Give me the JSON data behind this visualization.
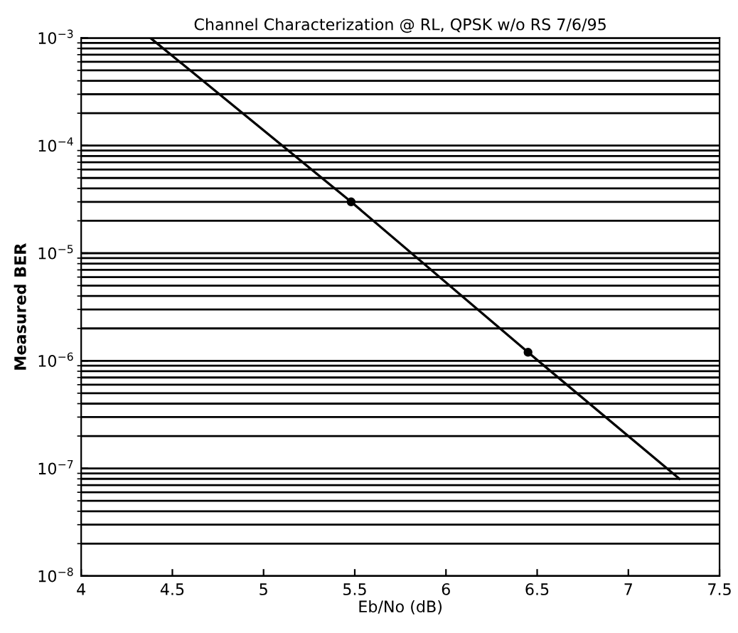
{
  "chart_data": {
    "type": "line",
    "title": "Channel Characterization @ RL, QPSK w/o RS 7/6/95",
    "xlabel": "Eb/No (dB)",
    "ylabel": "Measured BER",
    "series": [
      {
        "color": "#000000",
        "marker": "none",
        "x": [
          4.38,
          5.48,
          6.45,
          7.28
        ],
        "values": [
          0.001,
          3e-05,
          1.2e-06,
          8e-08
        ]
      },
      {
        "type": "scatter",
        "marker": "circle",
        "color": "#000000",
        "x": [
          5.48,
          6.45
        ],
        "values": [
          3e-05,
          1.2e-06
        ]
      }
    ],
    "log": "y",
    "xlim": [
      4,
      7.5
    ],
    "xticks": [
      4,
      4.5,
      5,
      5.5,
      6,
      6.5,
      7,
      7.5
    ],
    "ylim": [
      1e-08,
      0.001
    ],
    "yticks": [
      {
        "value": 1e-08,
        "label": "10$^{−8}$"
      },
      {
        "value": 1e-07,
        "label": "10$^{−7}$"
      },
      {
        "value": 1e-06,
        "label": "10$^{−6}$"
      },
      {
        "value": 1e-05,
        "label": "10$^{−5}$"
      },
      {
        "value": 0.0001,
        "label": "10$^{−4}$"
      },
      {
        "value": 0.001,
        "label": "10$^{−3}$"
      }
    ],
    "grid": "y",
    "line_style": "solid"
  }
}
